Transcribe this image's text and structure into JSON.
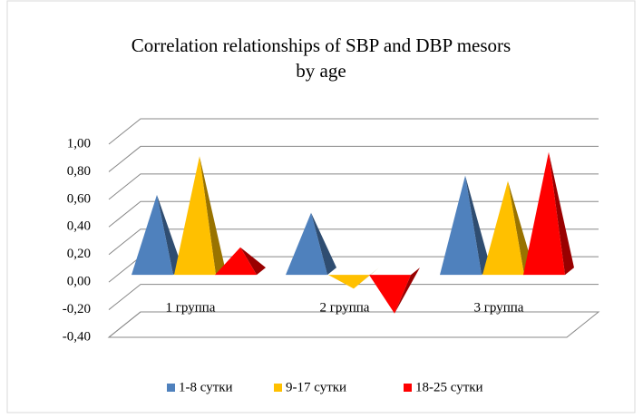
{
  "chart_data": {
    "type": "bar3d_pyramid",
    "title": "Correlation relationships of SBP and DBP mesors",
    "subtitle": "by age",
    "categories": [
      "1 группа",
      "2 группа",
      "3 группа"
    ],
    "series": [
      {
        "name": "1-8 сутки",
        "color": "#4f81bd",
        "values": [
          0.58,
          0.45,
          0.72
        ]
      },
      {
        "name": "9-17 сутки",
        "color": "#ffc000",
        "values": [
          0.86,
          -0.1,
          0.68
        ]
      },
      {
        "name": "18-25 сутки",
        "color": "#ff0000",
        "values": [
          0.2,
          -0.28,
          0.89
        ]
      }
    ],
    "ylim": [
      -0.4,
      1.0
    ],
    "yticks": [
      {
        "value": -0.4,
        "label": "-0,40"
      },
      {
        "value": -0.2,
        "label": "-0,20"
      },
      {
        "value": 0,
        "label": "0,00"
      },
      {
        "value": 0.2,
        "label": "0,20"
      },
      {
        "value": 0.4,
        "label": "0,40"
      },
      {
        "value": 0.6,
        "label": "0,60"
      },
      {
        "value": 0.8,
        "label": "0,80"
      },
      {
        "value": 1.0,
        "label": "1,00"
      }
    ],
    "grid": true,
    "legend": "bottom"
  }
}
